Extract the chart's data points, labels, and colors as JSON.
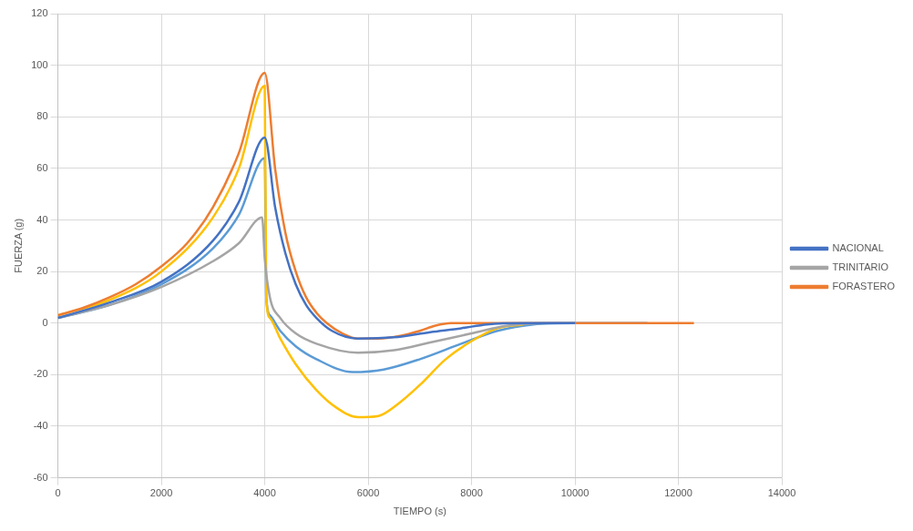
{
  "chart_data": {
    "type": "line",
    "xlabel": "TIEMPO (s)",
    "ylabel": "FUERZA (g)",
    "xlim": [
      0,
      14000
    ],
    "xticks": [
      0,
      2000,
      4000,
      6000,
      8000,
      10000,
      12000,
      14000
    ],
    "ylim": [
      -60,
      120
    ],
    "yticks": [
      -60,
      -40,
      -20,
      0,
      20,
      40,
      60,
      80,
      100,
      120
    ],
    "grid": true,
    "legend": "right",
    "marker": "none",
    "line_style": "solid",
    "series": [
      {
        "name": "NACIONAL",
        "color": "#4472c4",
        "x": [
          0,
          1000,
          2000,
          3000,
          3500,
          4000,
          4200,
          4400,
          4600,
          4800,
          5000,
          5300,
          5800,
          6500,
          7200,
          7800,
          8300,
          9000,
          10000
        ],
        "values": [
          2,
          8,
          16,
          32,
          47,
          72,
          45,
          27,
          15,
          7,
          2,
          -3,
          -6,
          -5.5,
          -3.5,
          -2,
          -0.5,
          0,
          0
        ]
      },
      {
        "name": "TRINITARIO",
        "color": "#a5a5a5",
        "x": [
          0,
          1000,
          2000,
          3000,
          3500,
          3950,
          4000,
          4100,
          4300,
          4600,
          5000,
          5800,
          6500,
          7200,
          8000,
          8700,
          9500,
          10000
        ],
        "values": [
          2,
          7,
          14,
          24,
          31,
          41,
          25,
          10,
          2,
          -4,
          -8,
          -11.5,
          -10.5,
          -7.5,
          -4,
          -1,
          0,
          0
        ]
      },
      {
        "name": "FORASTERO",
        "color": "#ed7d31",
        "x": [
          0,
          500,
          1000,
          1500,
          2000,
          2500,
          3000,
          3500,
          4000,
          4200,
          4400,
          4600,
          4800,
          5000,
          5200,
          5500,
          5800,
          6200,
          6600,
          7000,
          7300,
          7600,
          8000,
          9000,
          10000,
          11000,
          12300
        ],
        "values": [
          3,
          6,
          10,
          15,
          22,
          31,
          45,
          66,
          97,
          60,
          35,
          20,
          10,
          4,
          0,
          -4,
          -6,
          -6,
          -5,
          -3,
          -1,
          0,
          0,
          0,
          0,
          0,
          0
        ]
      },
      {
        "color": "#ffc000",
        "x": [
          0,
          1000,
          2000,
          3000,
          3500,
          4000,
          4030,
          4100,
          4300,
          4600,
          5000,
          5400,
          5800,
          6200,
          6600,
          7000,
          7500,
          8000,
          8500,
          9000
        ],
        "values": [
          3,
          9,
          20,
          41,
          60,
          92,
          10,
          2,
          -6,
          -16,
          -26,
          -33,
          -36.5,
          -36,
          -31,
          -24,
          -14,
          -7,
          -2,
          -0.5
        ]
      },
      {
        "color": "#5b9bd5",
        "x": [
          0,
          1000,
          2000,
          3000,
          3500,
          4000,
          4030,
          4100,
          4300,
          4600,
          5000,
          5700,
          6300,
          7000,
          7800,
          8500,
          9200,
          10000,
          11400
        ],
        "values": [
          2,
          7,
          15,
          29,
          42,
          64,
          10,
          3,
          -3,
          -9,
          -14,
          -19,
          -18,
          -14,
          -8,
          -3,
          -0.5,
          0,
          0
        ]
      }
    ]
  }
}
